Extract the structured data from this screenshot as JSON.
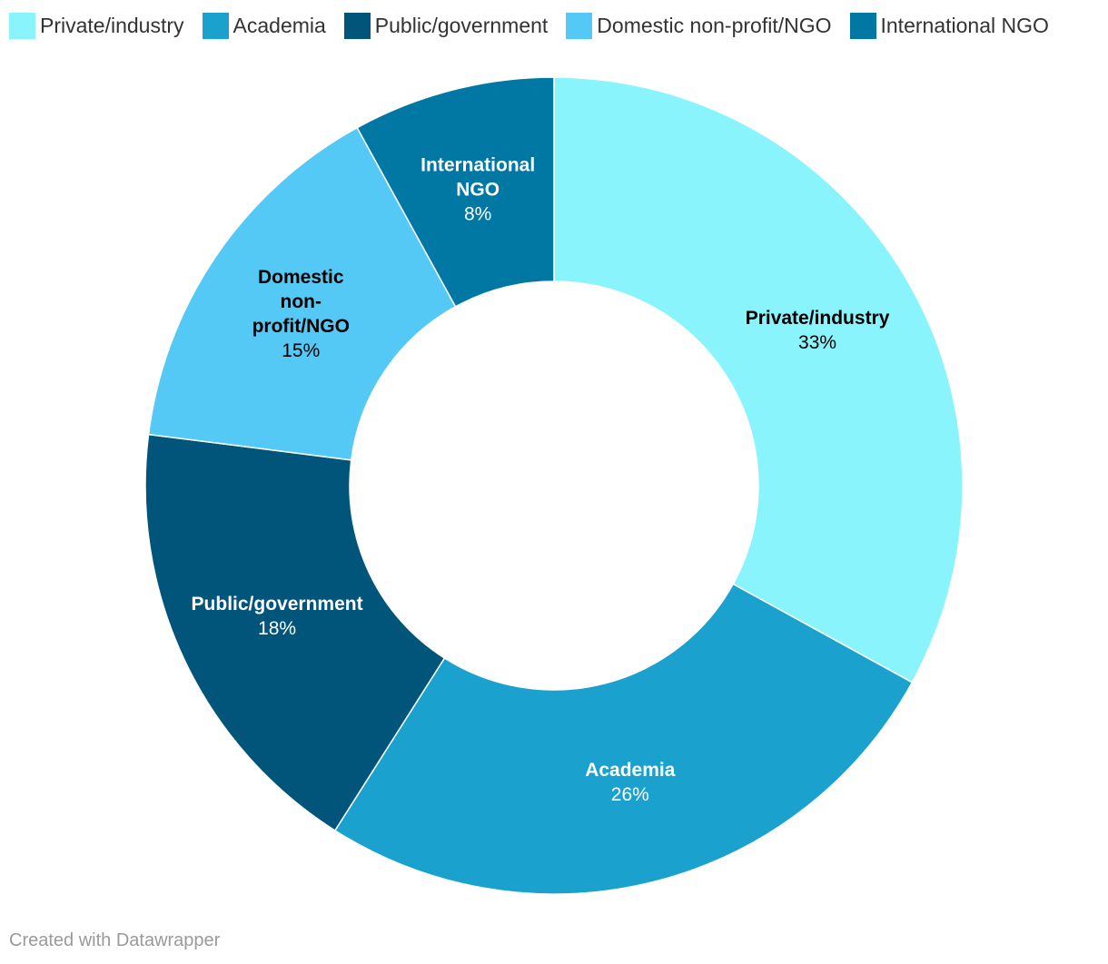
{
  "chart_data": {
    "type": "pie",
    "variant": "donut",
    "title": "",
    "legend_position": "top-left",
    "categories": [
      "Private/industry",
      "Academia",
      "Public/government",
      "Domestic non-profit/NGO",
      "International NGO"
    ],
    "values": [
      33,
      26,
      18,
      15,
      8
    ],
    "unit": "%",
    "value_labels": [
      "33%",
      "26%",
      "18%",
      "15%",
      "8%"
    ],
    "slice_labels": [
      [
        "Private/industry"
      ],
      [
        "Academia"
      ],
      [
        "Public/government"
      ],
      [
        "Domestic",
        "non-",
        "profit/NGO"
      ],
      [
        "International",
        "NGO"
      ]
    ],
    "colors": [
      "#8af4fc",
      "#1aa1ce",
      "#02557a",
      "#55c9f5",
      "#0078a3"
    ],
    "label_colors": [
      "#000000",
      "#ffffff",
      "#ffffff",
      "#000000",
      "#ffffff"
    ]
  },
  "footer": {
    "credit": "Created with Datawrapper"
  }
}
